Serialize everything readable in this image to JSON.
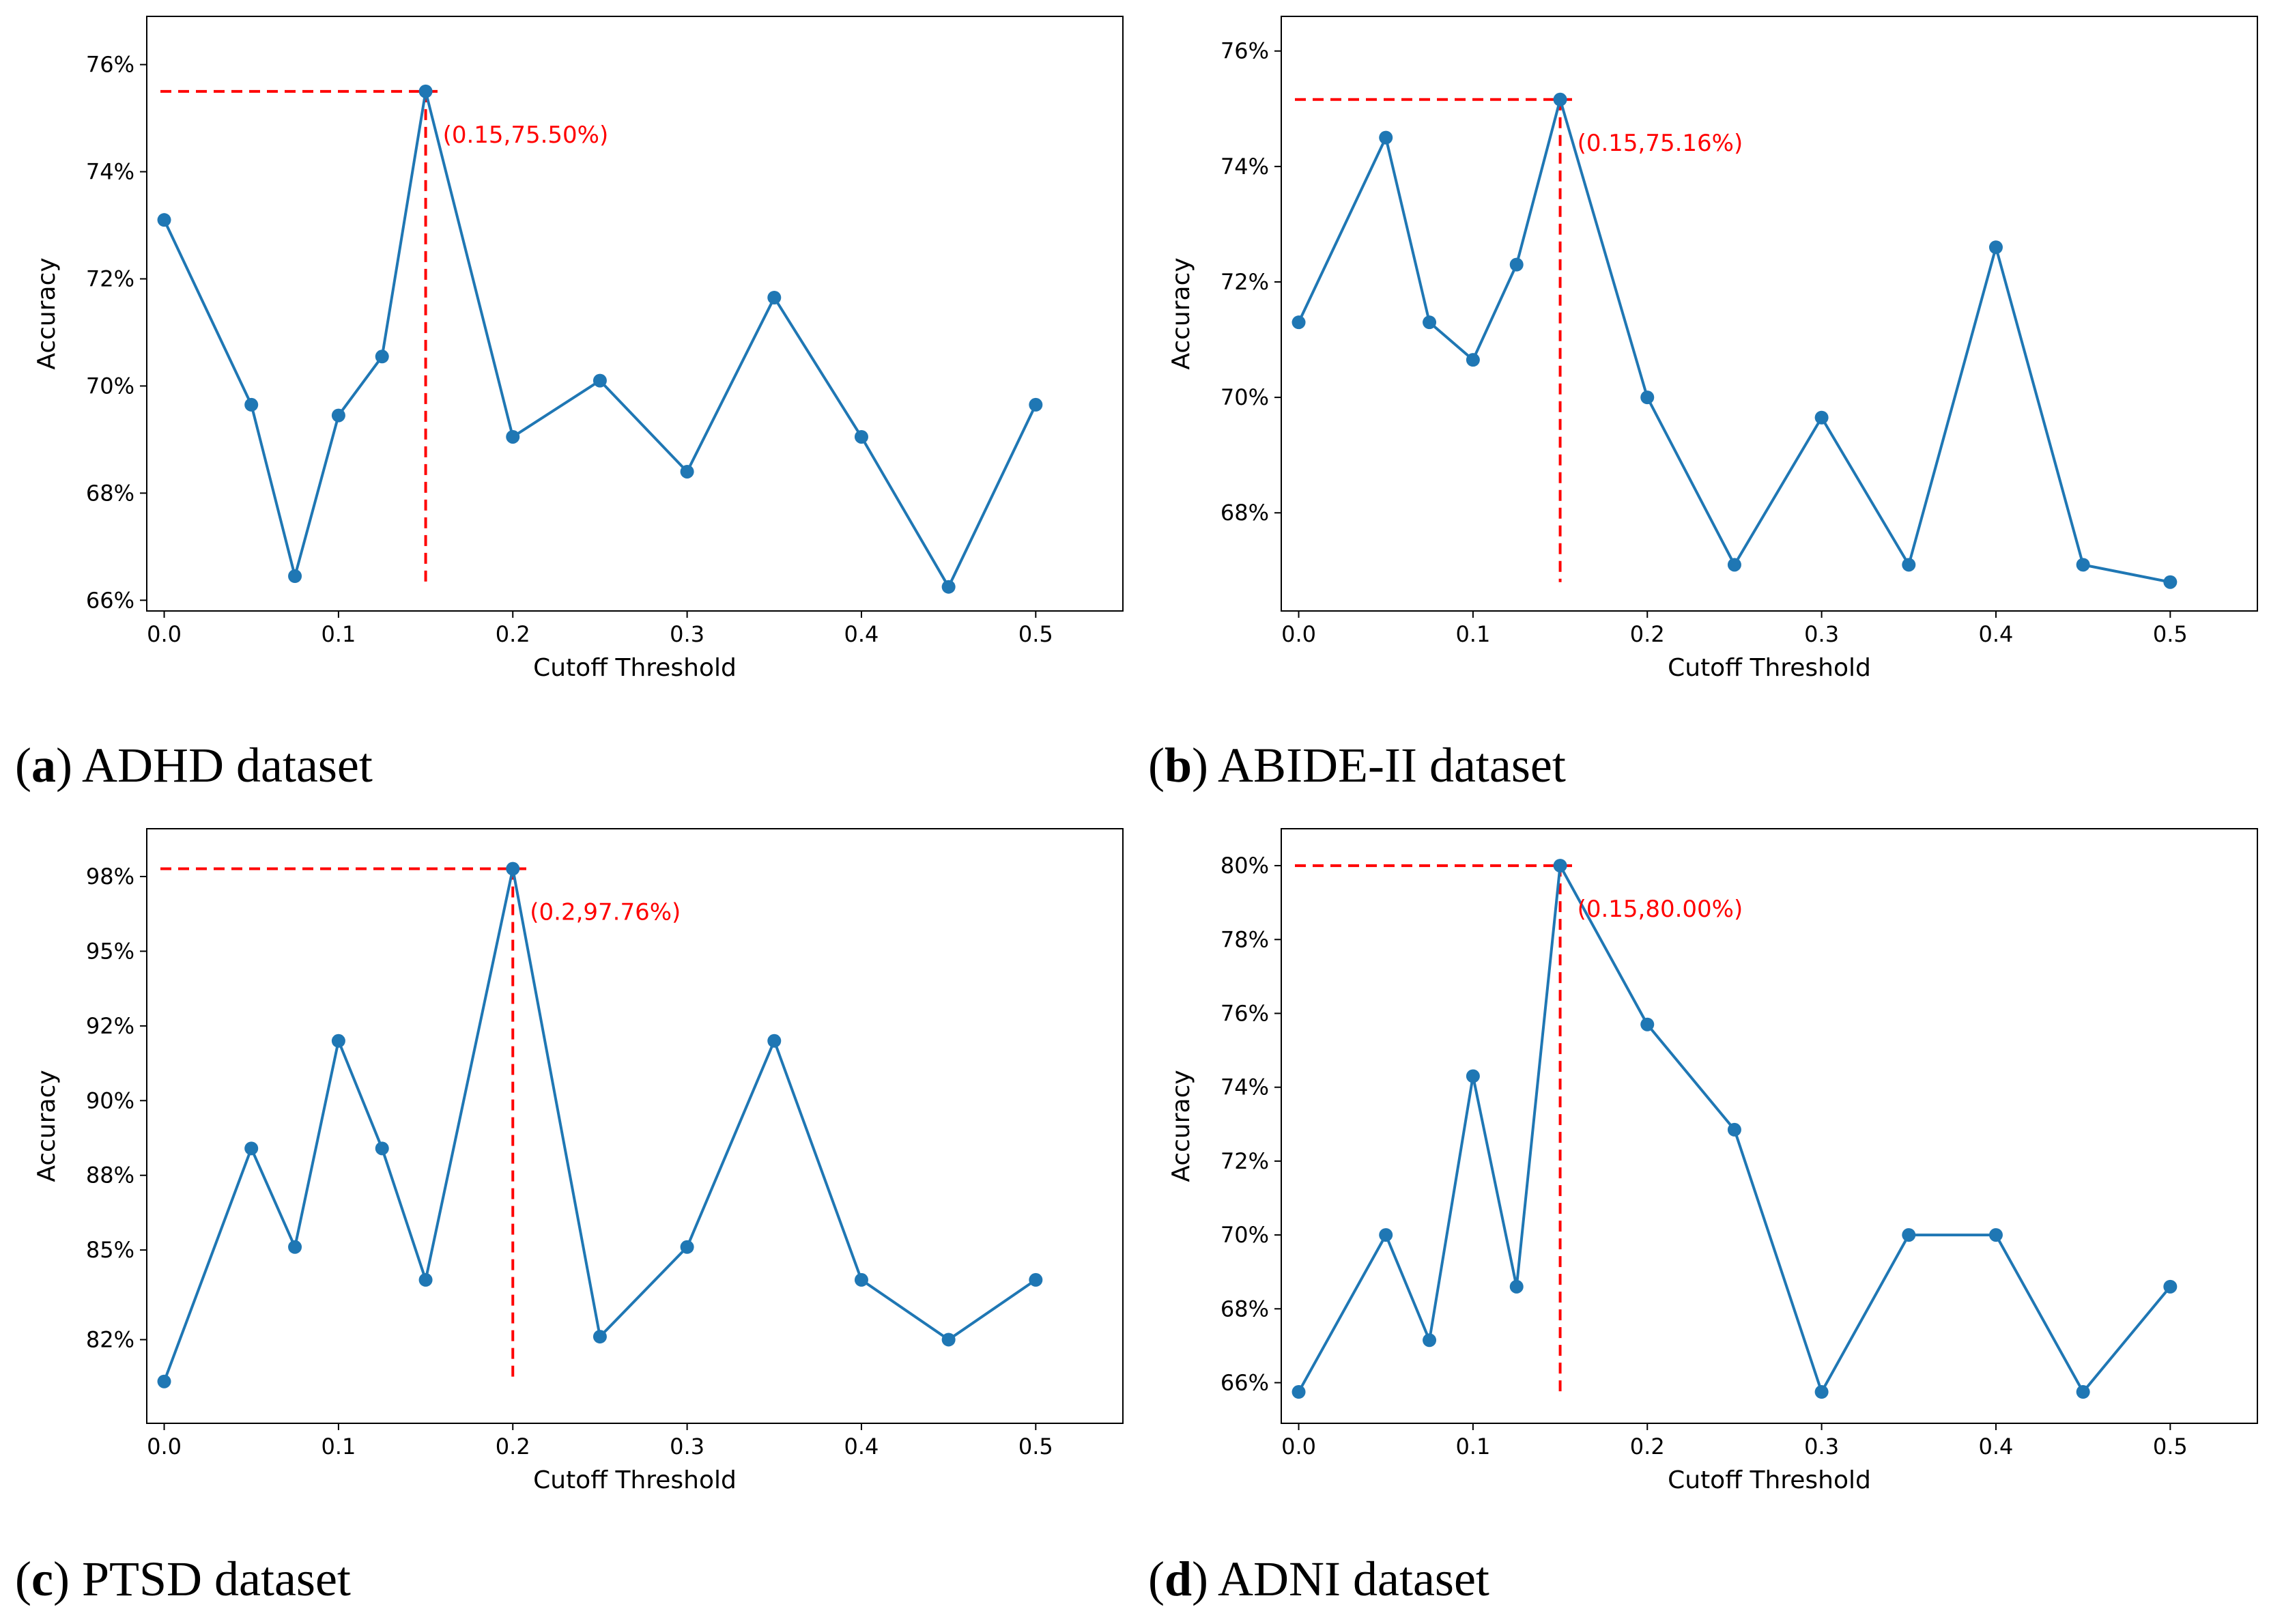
{
  "chart_data": [
    {
      "type": "line",
      "caption_label": "a",
      "caption_text": "ADHD dataset",
      "xlabel": "Cutoff Threshold",
      "ylabel": "Accuracy",
      "xlim": [
        -0.01,
        0.55
      ],
      "ylim": [
        65.8,
        76.9
      ],
      "x_ticks": [
        0.0,
        0.1,
        0.2,
        0.3,
        0.4,
        0.5
      ],
      "x_tick_labels": [
        "0.0",
        "0.1",
        "0.2",
        "0.3",
        "0.4",
        "0.5"
      ],
      "y_ticks": [
        66,
        68,
        70,
        72,
        74,
        76
      ],
      "y_tick_labels": [
        "66%",
        "68%",
        "70%",
        "72%",
        "74%",
        "76%"
      ],
      "x": [
        0.0,
        0.05,
        0.075,
        0.1,
        0.125,
        0.15,
        0.2,
        0.25,
        0.3,
        0.35,
        0.4,
        0.45,
        0.5
      ],
      "y": [
        73.1,
        69.65,
        66.45,
        69.45,
        70.55,
        75.5,
        69.05,
        70.1,
        68.4,
        71.65,
        69.05,
        66.25,
        69.65
      ],
      "series_color": "#1f77b4",
      "highlight": {
        "x": 0.15,
        "y": 75.5,
        "y_line_bottom": 66.25,
        "label": "(0.15,75.50%)",
        "color": "#ff0000"
      }
    },
    {
      "type": "line",
      "caption_label": "b",
      "caption_text": "ABIDE-II dataset",
      "xlabel": "Cutoff Threshold",
      "ylabel": "Accuracy",
      "xlim": [
        -0.01,
        0.55
      ],
      "ylim": [
        66.3,
        76.6
      ],
      "x_ticks": [
        0.0,
        0.1,
        0.2,
        0.3,
        0.4,
        0.5
      ],
      "x_tick_labels": [
        "0.0",
        "0.1",
        "0.2",
        "0.3",
        "0.4",
        "0.5"
      ],
      "y_ticks": [
        68,
        70,
        72,
        74,
        76
      ],
      "y_tick_labels": [
        "68%",
        "70%",
        "72%",
        "74%",
        "76%"
      ],
      "x": [
        0.0,
        0.05,
        0.075,
        0.1,
        0.125,
        0.15,
        0.2,
        0.25,
        0.3,
        0.35,
        0.4,
        0.45,
        0.5
      ],
      "y": [
        71.3,
        74.5,
        71.3,
        70.65,
        72.3,
        75.16,
        70.0,
        67.1,
        69.65,
        67.1,
        72.6,
        67.1,
        66.8
      ],
      "series_color": "#1f77b4",
      "highlight": {
        "x": 0.15,
        "y": 75.16,
        "y_line_bottom": 66.8,
        "label": "(0.15,75.16%)",
        "color": "#ff0000"
      }
    },
    {
      "type": "line",
      "caption_label": "c",
      "caption_text": "PTSD dataset",
      "xlabel": "Cutoff Threshold",
      "ylabel": "Accuracy",
      "xlim": [
        -0.01,
        0.55
      ],
      "ylim": [
        79.2,
        99.1
      ],
      "x_ticks": [
        0.0,
        0.1,
        0.2,
        0.3,
        0.4,
        0.5
      ],
      "x_tick_labels": [
        "0.0",
        "0.1",
        "0.2",
        "0.3",
        "0.4",
        "0.5"
      ],
      "y_ticks": [
        82,
        85,
        87.5,
        90,
        92.5,
        95,
        97.5
      ],
      "y_tick_labels": [
        "82%",
        "85%",
        "88%",
        "90%",
        "92%",
        "95%",
        "98%"
      ],
      "x": [
        0.0,
        0.05,
        0.075,
        0.1,
        0.125,
        0.15,
        0.2,
        0.25,
        0.3,
        0.35,
        0.4,
        0.45,
        0.5
      ],
      "y": [
        80.6,
        88.4,
        85.1,
        92.0,
        88.4,
        84.0,
        97.76,
        82.1,
        85.1,
        92.0,
        84.0,
        82.0,
        84.0
      ],
      "series_color": "#1f77b4",
      "highlight": {
        "x": 0.2,
        "y": 97.76,
        "y_line_bottom": 80.6,
        "label": "(0.2,97.76%)",
        "color": "#ff0000"
      }
    },
    {
      "type": "line",
      "caption_label": "d",
      "caption_text": "ADNI dataset",
      "xlabel": "Cutoff Threshold",
      "ylabel": "Accuracy",
      "xlim": [
        -0.01,
        0.55
      ],
      "ylim": [
        64.9,
        81.0
      ],
      "x_ticks": [
        0.0,
        0.1,
        0.2,
        0.3,
        0.4,
        0.5
      ],
      "x_tick_labels": [
        "0.0",
        "0.1",
        "0.2",
        "0.3",
        "0.4",
        "0.5"
      ],
      "y_ticks": [
        66,
        68,
        70,
        72,
        74,
        76,
        78,
        80
      ],
      "y_tick_labels": [
        "66%",
        "68%",
        "70%",
        "72%",
        "74%",
        "76%",
        "78%",
        "80%"
      ],
      "x": [
        0.0,
        0.05,
        0.075,
        0.1,
        0.125,
        0.15,
        0.2,
        0.25,
        0.3,
        0.35,
        0.4,
        0.45,
        0.5
      ],
      "y": [
        65.75,
        70.0,
        67.15,
        74.3,
        68.6,
        80.0,
        75.7,
        72.85,
        65.75,
        70.0,
        70.0,
        65.75,
        68.6
      ],
      "series_color": "#1f77b4",
      "highlight": {
        "x": 0.15,
        "y": 80.0,
        "y_line_bottom": 65.75,
        "label": "(0.15,80.00%)",
        "color": "#ff0000"
      }
    }
  ]
}
